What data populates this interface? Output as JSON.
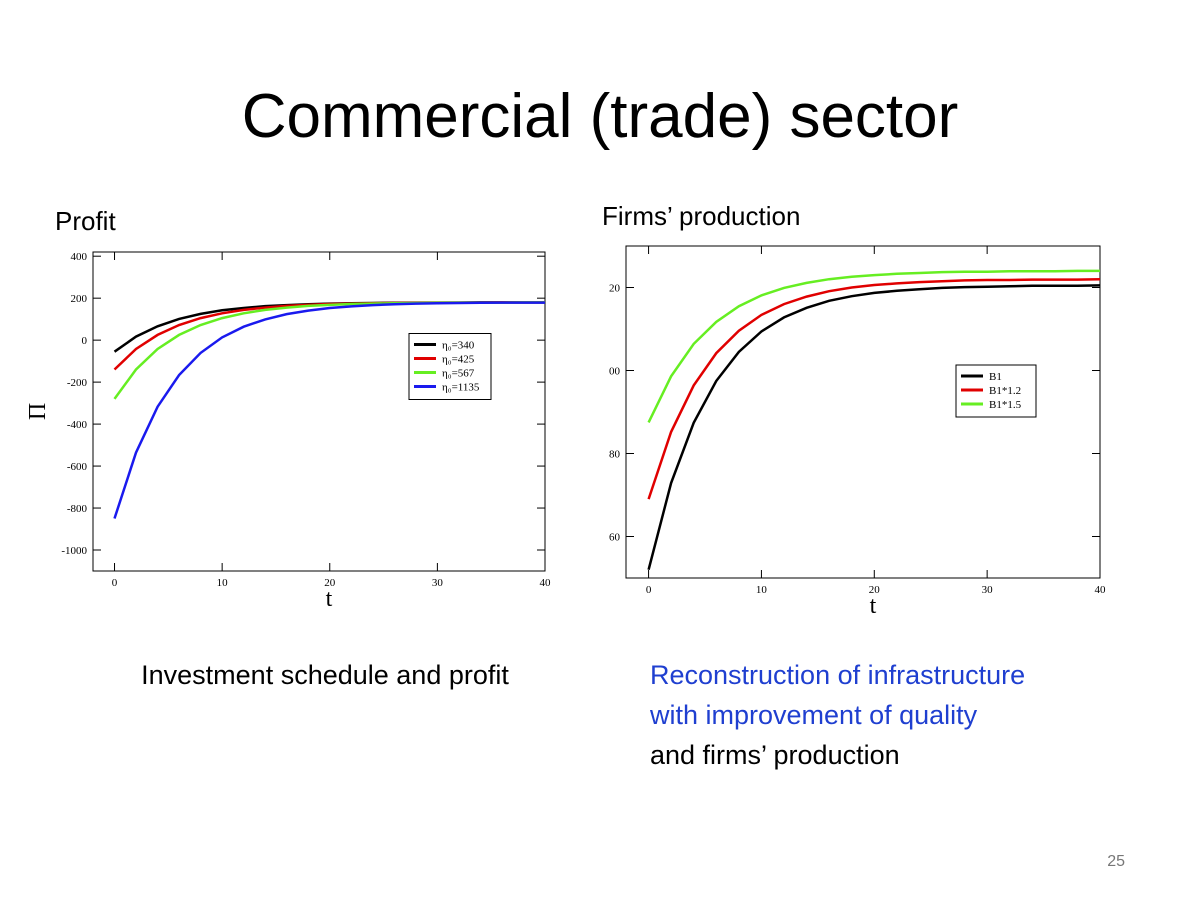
{
  "title": "Commercial (trade) sector",
  "page_number": "25",
  "left_caption": "Investment schedule and profit",
  "right_caption": {
    "highlight": [
      "Reconstruction of infrastructure",
      "with improvement of quality"
    ],
    "rest": "and firms’ production"
  },
  "chart_data": [
    {
      "type": "line",
      "title": "Profit",
      "xlabel": "t",
      "ylabel": "Π",
      "x": [
        0,
        2,
        4,
        6,
        8,
        10,
        12,
        14,
        16,
        18,
        20,
        22,
        24,
        26,
        28,
        30,
        32,
        34,
        36,
        38,
        40
      ],
      "xlim": [
        -2,
        40
      ],
      "xticks": [
        0,
        10,
        20,
        30,
        40
      ],
      "ylim": [
        -1100,
        420
      ],
      "yticks": [
        -1000,
        -800,
        -600,
        -400,
        -200,
        0,
        200,
        400
      ],
      "legend": "center right",
      "series": [
        {
          "name": "η₀=340",
          "color": "#000000",
          "values": [
            -55,
            17,
            66,
            101,
            125,
            142,
            153,
            162,
            167,
            171,
            174,
            176,
            177,
            178,
            179,
            179,
            179,
            180,
            180,
            180,
            180
          ]
        },
        {
          "name": "η₀=425",
          "color": "#e00000",
          "values": [
            -140,
            -42,
            25,
            72,
            105,
            128,
            144,
            155,
            163,
            168,
            172,
            174,
            176,
            177,
            178,
            179,
            179,
            179,
            180,
            180,
            180
          ]
        },
        {
          "name": "η₀=567",
          "color": "#66ee22",
          "values": [
            -280,
            -140,
            -42,
            25,
            72,
            105,
            128,
            144,
            155,
            163,
            168,
            172,
            174,
            176,
            177,
            178,
            179,
            179,
            179,
            180,
            180
          ]
        },
        {
          "name": "η₀=1135",
          "color": "#1a1aee",
          "values": [
            -850,
            -536,
            -317,
            -166,
            -61,
            13,
            64,
            99,
            124,
            141,
            153,
            161,
            167,
            171,
            174,
            176,
            177,
            178,
            179,
            179,
            179
          ]
        }
      ]
    },
    {
      "type": "line",
      "title": "Firms’ production",
      "xlabel": "t",
      "x": [
        0,
        2,
        4,
        6,
        8,
        10,
        12,
        14,
        16,
        18,
        20,
        22,
        24,
        26,
        28,
        30,
        32,
        34,
        36,
        38,
        40
      ],
      "xlim": [
        -2,
        40
      ],
      "xticks": [
        0,
        10,
        20,
        30,
        40
      ],
      "ylim": [
        50,
        130
      ],
      "yticks": [
        60,
        80,
        {
          "value": 100,
          "label": "00"
        },
        {
          "value": 120,
          "label": "20"
        }
      ],
      "legend": "upper right",
      "series": [
        {
          "name": "B1",
          "color": "#000000",
          "values": [
            52,
            72.9,
            87.4,
            97.5,
            104.5,
            109.4,
            112.8,
            115.1,
            116.8,
            117.9,
            118.7,
            119.2,
            119.6,
            119.9,
            120.1,
            120.2,
            120.3,
            120.4,
            120.4,
            120.4,
            120.5
          ]
        },
        {
          "name": "B1*1.2",
          "color": "#e00000",
          "values": [
            69,
            85.2,
            96.4,
            104.2,
            109.6,
            113.4,
            116,
            117.8,
            119.1,
            120,
            120.6,
            121,
            121.3,
            121.5,
            121.7,
            121.8,
            121.8,
            121.9,
            121.9,
            121.9,
            122
          ]
        },
        {
          "name": "B1*1.5",
          "color": "#66ee22",
          "values": [
            87.5,
            98.6,
            106.4,
            111.7,
            115.5,
            118.1,
            119.9,
            121.1,
            122,
            122.6,
            123,
            123.3,
            123.5,
            123.7,
            123.8,
            123.8,
            123.9,
            123.9,
            123.9,
            124,
            124
          ]
        }
      ]
    }
  ]
}
